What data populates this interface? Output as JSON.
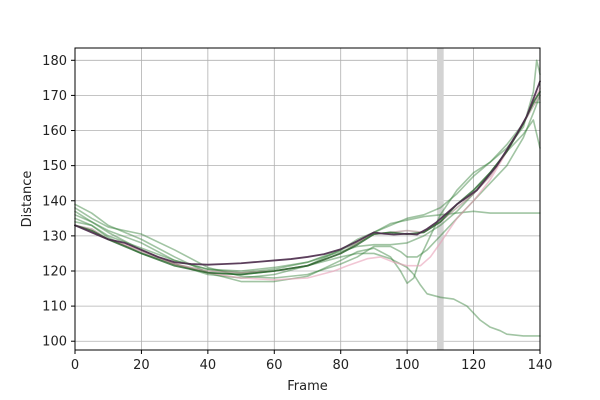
{
  "chart_data": {
    "type": "line",
    "xlabel": "Frame",
    "ylabel": "Distance",
    "xlim": [
      0,
      140
    ],
    "ylim": [
      97.5,
      183.5
    ],
    "xticks": [
      0,
      20,
      40,
      60,
      80,
      100,
      120,
      140
    ],
    "yticks": [
      100,
      110,
      120,
      130,
      140,
      150,
      160,
      170,
      180
    ],
    "grid": true,
    "highlight_span": {
      "x0": 109,
      "x1": 111,
      "color": "#d3d3d3"
    },
    "series": [
      {
        "color": "#2e7d32",
        "opacity": 0.45,
        "width": 1.6,
        "points": [
          [
            0,
            138
          ],
          [
            5,
            135
          ],
          [
            10,
            132.5
          ],
          [
            20,
            130.5
          ],
          [
            30,
            126
          ],
          [
            40,
            121
          ],
          [
            50,
            118.5
          ],
          [
            60,
            118
          ],
          [
            70,
            119
          ],
          [
            80,
            122
          ],
          [
            85,
            124
          ],
          [
            90,
            127
          ],
          [
            95,
            127
          ],
          [
            98,
            125.5
          ],
          [
            100,
            124
          ],
          [
            103,
            124
          ],
          [
            106,
            126
          ],
          [
            110,
            130
          ],
          [
            115,
            135
          ],
          [
            120,
            140
          ],
          [
            125,
            145
          ],
          [
            130,
            150
          ],
          [
            135,
            158
          ],
          [
            138,
            165
          ],
          [
            140,
            170
          ]
        ]
      },
      {
        "color": "#2e7d32",
        "opacity": 0.45,
        "width": 1.6,
        "points": [
          [
            0,
            139
          ],
          [
            5,
            136.5
          ],
          [
            10,
            133
          ],
          [
            20,
            129
          ],
          [
            30,
            124
          ],
          [
            40,
            119.5
          ],
          [
            50,
            117
          ],
          [
            60,
            117
          ],
          [
            70,
            118.5
          ],
          [
            80,
            123
          ],
          [
            85,
            125.5
          ],
          [
            90,
            126.5
          ],
          [
            95,
            124
          ],
          [
            98,
            120
          ],
          [
            100,
            116.5
          ],
          [
            102,
            118
          ],
          [
            104,
            124
          ],
          [
            107,
            130
          ],
          [
            110,
            136
          ],
          [
            115,
            143
          ],
          [
            120,
            148
          ],
          [
            125,
            151
          ],
          [
            130,
            155
          ],
          [
            135,
            161
          ],
          [
            138,
            171
          ],
          [
            139,
            180
          ],
          [
            140,
            176
          ]
        ]
      },
      {
        "color": "#2e7d32",
        "opacity": 0.45,
        "width": 1.6,
        "points": [
          [
            0,
            137
          ],
          [
            5,
            134
          ],
          [
            10,
            131
          ],
          [
            20,
            126
          ],
          [
            30,
            122
          ],
          [
            40,
            119
          ],
          [
            50,
            118
          ],
          [
            60,
            119
          ],
          [
            70,
            121.5
          ],
          [
            80,
            126
          ],
          [
            85,
            129
          ],
          [
            90,
            131
          ],
          [
            95,
            133
          ],
          [
            100,
            135
          ],
          [
            105,
            136
          ],
          [
            110,
            138
          ],
          [
            115,
            142
          ],
          [
            120,
            147
          ],
          [
            125,
            151
          ],
          [
            130,
            156
          ],
          [
            135,
            162
          ],
          [
            138,
            168
          ],
          [
            140,
            168
          ]
        ]
      },
      {
        "color": "#2e7d32",
        "opacity": 0.45,
        "width": 1.6,
        "points": [
          [
            0,
            136
          ],
          [
            5,
            134
          ],
          [
            10,
            131.5
          ],
          [
            20,
            128
          ],
          [
            30,
            123
          ],
          [
            40,
            120.5
          ],
          [
            50,
            119.5
          ],
          [
            60,
            120.5
          ],
          [
            70,
            122.5
          ],
          [
            80,
            126
          ],
          [
            85,
            128
          ],
          [
            90,
            131
          ],
          [
            95,
            133.5
          ],
          [
            100,
            134.5
          ],
          [
            105,
            135.5
          ],
          [
            110,
            136
          ],
          [
            115,
            136.5
          ],
          [
            120,
            137
          ],
          [
            125,
            136.5
          ],
          [
            130,
            136.5
          ],
          [
            135,
            136.5
          ],
          [
            140,
            136.5
          ]
        ]
      },
      {
        "color": "#2e7d32",
        "opacity": 0.45,
        "width": 1.6,
        "points": [
          [
            0,
            135
          ],
          [
            5,
            133
          ],
          [
            10,
            129.5
          ],
          [
            20,
            125
          ],
          [
            30,
            122
          ],
          [
            40,
            119.5
          ],
          [
            50,
            119
          ],
          [
            60,
            120
          ],
          [
            70,
            121.5
          ],
          [
            80,
            124
          ],
          [
            85,
            125
          ],
          [
            90,
            125
          ],
          [
            95,
            123.5
          ],
          [
            100,
            121
          ],
          [
            102,
            119
          ],
          [
            104,
            116
          ],
          [
            106,
            113.5
          ],
          [
            110,
            112.5
          ],
          [
            114,
            112
          ],
          [
            118,
            110
          ],
          [
            122,
            106
          ],
          [
            125,
            104
          ],
          [
            128,
            103
          ],
          [
            130,
            102
          ],
          [
            135,
            101.5
          ],
          [
            140,
            101.5
          ]
        ]
      },
      {
        "color": "#2e7d32",
        "opacity": 0.45,
        "width": 1.6,
        "points": [
          [
            0,
            134
          ],
          [
            5,
            133
          ],
          [
            10,
            130
          ],
          [
            20,
            126.5
          ],
          [
            30,
            123
          ],
          [
            40,
            120.5
          ],
          [
            50,
            120
          ],
          [
            60,
            121
          ],
          [
            70,
            122.5
          ],
          [
            80,
            125.5
          ],
          [
            85,
            127
          ],
          [
            90,
            127.5
          ],
          [
            95,
            127.5
          ],
          [
            100,
            128
          ],
          [
            105,
            130
          ],
          [
            110,
            133
          ],
          [
            115,
            137
          ],
          [
            120,
            142
          ],
          [
            125,
            148
          ],
          [
            130,
            154
          ],
          [
            135,
            159
          ],
          [
            138,
            163
          ],
          [
            140,
            155
          ]
        ]
      },
      {
        "color": "#e8a0b8",
        "opacity": 0.6,
        "width": 1.6,
        "points": [
          [
            0,
            133
          ],
          [
            5,
            131.5
          ],
          [
            10,
            129
          ],
          [
            20,
            126
          ],
          [
            30,
            122
          ],
          [
            40,
            119.5
          ],
          [
            50,
            118
          ],
          [
            60,
            117.5
          ],
          [
            70,
            118
          ],
          [
            78,
            120
          ],
          [
            82,
            121.5
          ],
          [
            88,
            123.5
          ],
          [
            92,
            124
          ],
          [
            96,
            122.5
          ],
          [
            100,
            121.5
          ],
          [
            104,
            121.5
          ],
          [
            107,
            124
          ],
          [
            110,
            128
          ],
          [
            115,
            135
          ],
          [
            120,
            140
          ],
          [
            125,
            146
          ],
          [
            130,
            154
          ],
          [
            135,
            162
          ],
          [
            138,
            168
          ],
          [
            140,
            172
          ]
        ]
      },
      {
        "color": "#a08080",
        "opacity": 0.55,
        "width": 1.6,
        "points": [
          [
            0,
            133
          ],
          [
            5,
            132
          ],
          [
            10,
            129
          ],
          [
            20,
            125.5
          ],
          [
            30,
            122
          ],
          [
            40,
            120
          ],
          [
            50,
            119.5
          ],
          [
            60,
            120
          ],
          [
            70,
            121.5
          ],
          [
            80,
            125
          ],
          [
            85,
            128
          ],
          [
            90,
            130.5
          ],
          [
            95,
            131
          ],
          [
            100,
            131.5
          ],
          [
            105,
            131
          ],
          [
            110,
            134
          ],
          [
            115,
            138
          ],
          [
            120,
            142
          ],
          [
            125,
            147
          ],
          [
            130,
            154
          ],
          [
            135,
            162
          ],
          [
            138,
            167
          ],
          [
            140,
            170
          ]
        ]
      },
      {
        "color": "#1b5e20",
        "opacity": 0.75,
        "width": 1.8,
        "points": [
          [
            0,
            133
          ],
          [
            5,
            131.5
          ],
          [
            10,
            129
          ],
          [
            20,
            125
          ],
          [
            30,
            121.5
          ],
          [
            40,
            119.5
          ],
          [
            50,
            119
          ],
          [
            60,
            120
          ],
          [
            70,
            121.5
          ],
          [
            80,
            125
          ],
          [
            85,
            127.5
          ],
          [
            90,
            130.5
          ],
          [
            95,
            131
          ],
          [
            100,
            130.5
          ],
          [
            105,
            131
          ],
          [
            110,
            134
          ],
          [
            115,
            139
          ],
          [
            120,
            143
          ],
          [
            125,
            148
          ],
          [
            130,
            154
          ],
          [
            135,
            162
          ],
          [
            138,
            168
          ],
          [
            140,
            171
          ]
        ]
      },
      {
        "color": "#4a2a4a",
        "opacity": 0.9,
        "width": 1.8,
        "points": [
          [
            0,
            133
          ],
          [
            5,
            131
          ],
          [
            10,
            129
          ],
          [
            15,
            128
          ],
          [
            20,
            126
          ],
          [
            25,
            124
          ],
          [
            30,
            122.5
          ],
          [
            35,
            122
          ],
          [
            40,
            121.8
          ],
          [
            45,
            122
          ],
          [
            50,
            122.2
          ],
          [
            55,
            122.6
          ],
          [
            60,
            123
          ],
          [
            65,
            123.4
          ],
          [
            70,
            124
          ],
          [
            75,
            124.8
          ],
          [
            80,
            126.2
          ],
          [
            85,
            128.5
          ],
          [
            88,
            130
          ],
          [
            90,
            131
          ],
          [
            93,
            130.6
          ],
          [
            96,
            130.4
          ],
          [
            100,
            130.6
          ],
          [
            103,
            130.4
          ],
          [
            106,
            132
          ],
          [
            109,
            134
          ],
          [
            112,
            136.5
          ],
          [
            115,
            139
          ],
          [
            118,
            141
          ],
          [
            121,
            143
          ],
          [
            124,
            146.5
          ],
          [
            127,
            150
          ],
          [
            130,
            154.5
          ],
          [
            133,
            159
          ],
          [
            136,
            164
          ],
          [
            138,
            169
          ],
          [
            140,
            174
          ]
        ]
      }
    ]
  }
}
